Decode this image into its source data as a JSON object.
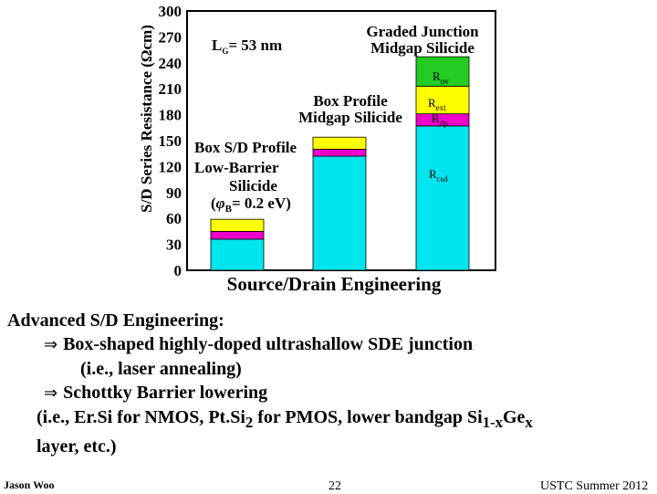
{
  "chart_data": {
    "type": "bar",
    "stacked": true,
    "ylabel": "S/D Series Resistance (Ωcm)",
    "xlabel": "Source/Drain Engineering",
    "ylim": [
      0,
      300
    ],
    "yticks": [
      0,
      30,
      60,
      90,
      120,
      150,
      180,
      210,
      240,
      270,
      300
    ],
    "bars": [
      {
        "segments": [
          {
            "series": "Rcsd",
            "value": 36
          },
          {
            "series": "Rdp",
            "value": 9
          },
          {
            "series": "Rext",
            "value": 14
          }
        ]
      },
      {
        "segments": [
          {
            "series": "Rcsd",
            "value": 132
          },
          {
            "series": "Rdp",
            "value": 8
          },
          {
            "series": "Rext",
            "value": 14
          }
        ]
      },
      {
        "segments": [
          {
            "series": "Rcsd",
            "value": 167
          },
          {
            "series": "Rdp",
            "value": 14
          },
          {
            "series": "Rext",
            "value": 32
          },
          {
            "series": "Rov",
            "value": 34
          }
        ]
      }
    ],
    "series_colors": {
      "Rcsd": "#00E5EE",
      "Rdp": "#EE00CC",
      "Rext": "#FFFF00",
      "Rov": "#22CC22"
    },
    "segment_labels": [
      {
        "main": "R",
        "sub": "ov"
      },
      {
        "main": "R",
        "sub": "ext"
      },
      {
        "main": "R",
        "sub": "dp"
      },
      {
        "main": "R",
        "sub": "csd"
      }
    ],
    "gate_label": {
      "main": "L",
      "sub": "G",
      "rest": "= 53 nm"
    },
    "annotations": {
      "bar1": [
        "Box S/D Profile",
        "Low-Barrier",
        "Silicide"
      ],
      "bar1_phi": {
        "open": "(",
        "sym": "φ",
        "sub": "B",
        "rest": "= 0.2 eV)"
      },
      "bar2": [
        "Box Profile",
        "Midgap Silicide"
      ],
      "bar3": [
        "Graded Junction",
        "Midgap Silicide"
      ]
    }
  },
  "text": {
    "heading": "Advanced S/D Engineering:",
    "arrow_glyph": "⇒",
    "bullet1": "Box-shaped highly-doped ultrashallow SDE junction",
    "bullet1_sub": "(i.e., laser annealing)",
    "bullet2": "Schottky Barrier lowering",
    "line4_a": "(i.e., Er.Si for NMOS,  Pt.Si",
    "line4_sub2": "2",
    "line4_b": " for PMOS, lower bandgap Si",
    "line4_sub1x": "1-x",
    "line4_c": "Ge",
    "line4_subx": "x",
    "line5": "layer, etc.)"
  },
  "footer": {
    "author": "Jason Woo",
    "page": "22",
    "course": "USTC  Summer 2012"
  }
}
